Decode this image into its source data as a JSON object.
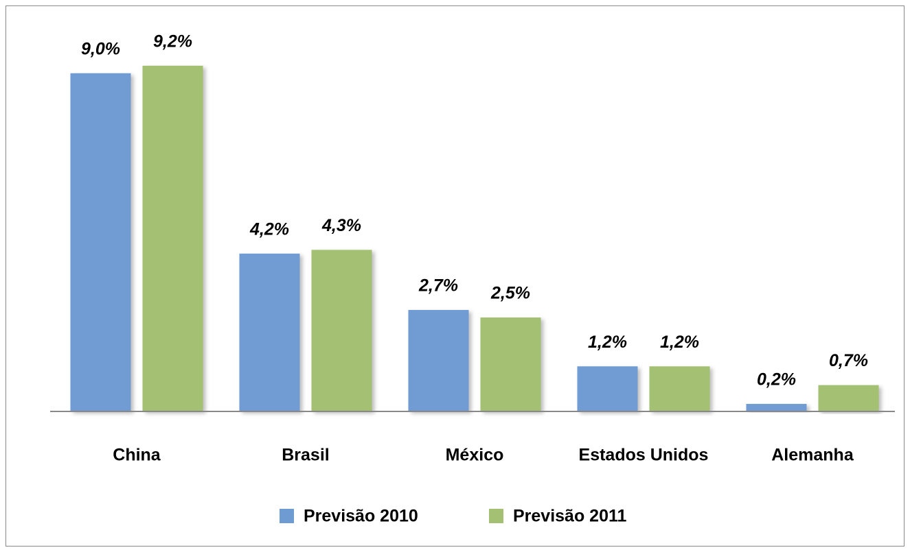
{
  "chart_data": {
    "type": "bar",
    "categories": [
      "China",
      "Brasil",
      "México",
      "Estados Unidos",
      "Alemanha"
    ],
    "series": [
      {
        "name": "Previsão 2010",
        "color": "#6f9bd3",
        "values": [
          9.0,
          4.2,
          2.7,
          1.2,
          0.2
        ],
        "value_labels": [
          "9,0%",
          "4,2%",
          "2,7%",
          "1,2%",
          "0,2%"
        ]
      },
      {
        "name": "Previsão 2011",
        "color": "#a3c073",
        "values": [
          9.2,
          4.3,
          2.5,
          1.2,
          0.7
        ],
        "value_labels": [
          "9,2%",
          "4,3%",
          "2,5%",
          "1,2%",
          "0,7%"
        ]
      }
    ],
    "legend": "bottom"
  }
}
